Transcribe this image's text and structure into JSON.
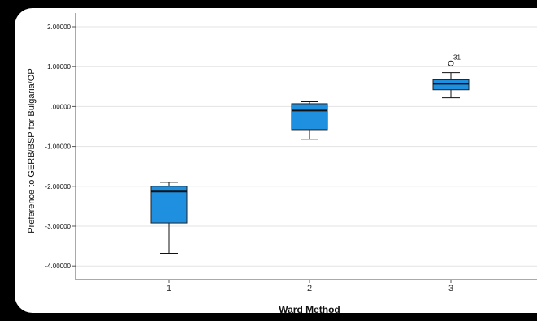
{
  "chart_data": {
    "type": "boxplot",
    "xlabel": "Ward Method",
    "ylabel": "Preference to GERB/BSP for Bulgaria/OP",
    "ylim": [
      -4.3,
      2.3
    ],
    "yticks": [
      2,
      1,
      0,
      -1,
      -2,
      -3,
      -4
    ],
    "ytick_labels": [
      "2.00000",
      "1.00000",
      ".00000",
      "-1.00000",
      "-2.00000",
      "-3.00000",
      "-4.00000"
    ],
    "categories": [
      "1",
      "2",
      "3"
    ],
    "grid": true,
    "box_color": "#1f8fe0",
    "boxes": [
      {
        "category": "1",
        "whisker_low": -3.68,
        "q1": -2.92,
        "median": -2.13,
        "q3": -2.0,
        "whisker_high": -1.9,
        "outliers": []
      },
      {
        "category": "2",
        "whisker_low": -0.82,
        "q1": -0.58,
        "median": -0.1,
        "q3": 0.07,
        "whisker_high": 0.12,
        "outliers": []
      },
      {
        "category": "3",
        "whisker_low": 0.22,
        "q1": 0.42,
        "median": 0.57,
        "q3": 0.67,
        "whisker_high": 0.85,
        "outliers": [
          {
            "value": 1.08,
            "label": "31"
          }
        ]
      }
    ]
  }
}
